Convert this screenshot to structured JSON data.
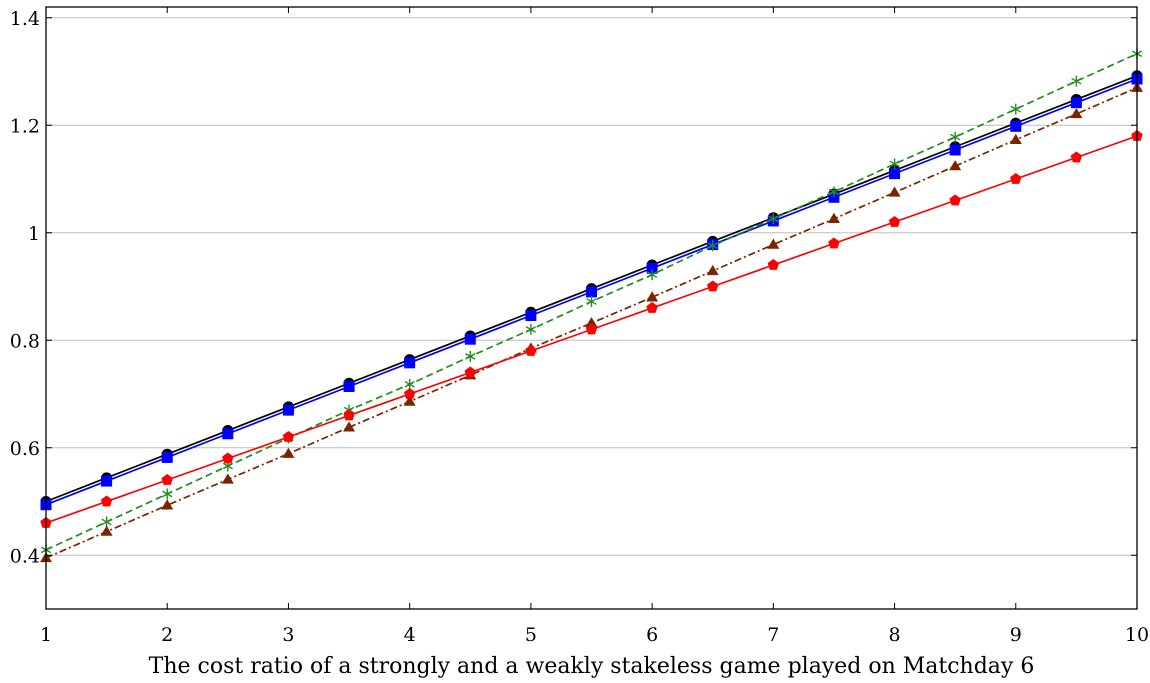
{
  "chart_data": {
    "type": "line",
    "title": "",
    "xlabel": "The cost ratio of a strongly and a weakly stakeless game played on Matchday 6",
    "ylabel": "",
    "xlim": [
      1,
      10
    ],
    "ylim": [
      0.3,
      1.42
    ],
    "grid": "horizontal",
    "legend": "none",
    "x_ticks": [
      "1",
      "2",
      "3",
      "4",
      "5",
      "6",
      "7",
      "8",
      "9",
      "10"
    ],
    "y_ticks": [
      "0.4",
      "0.6",
      "0.8",
      "1",
      "1.2",
      "1.4"
    ],
    "x_tick_values": [
      1,
      2,
      3,
      4,
      5,
      6,
      7,
      8,
      9,
      10
    ],
    "y_tick_values": [
      0.4,
      0.6,
      0.8,
      1.0,
      1.2,
      1.4
    ],
    "x": [
      1,
      1.5,
      2,
      2.5,
      3,
      3.5,
      4,
      4.5,
      5,
      5.5,
      6,
      6.5,
      7,
      7.5,
      8,
      8.5,
      9,
      9.5,
      10
    ],
    "series": [
      {
        "color": "#000000",
        "marker": "circle",
        "dash": "solid",
        "values": [
          0.5,
          0.544,
          0.588,
          0.632,
          0.676,
          0.72,
          0.764,
          0.808,
          0.852,
          0.896,
          0.94,
          0.984,
          1.028,
          1.072,
          1.116,
          1.16,
          1.204,
          1.248,
          1.292
        ]
      },
      {
        "color": "#0000ff",
        "marker": "square",
        "dash": "solid",
        "values": [
          0.494,
          0.538,
          0.582,
          0.626,
          0.67,
          0.714,
          0.758,
          0.802,
          0.846,
          0.89,
          0.934,
          0.978,
          1.022,
          1.066,
          1.11,
          1.154,
          1.198,
          1.242,
          1.286
        ]
      },
      {
        "color": "#228b22",
        "marker": "asterisk",
        "dash": "dashed",
        "values": [
          0.41,
          0.462,
          0.514,
          0.566,
          0.618,
          0.67,
          0.718,
          0.77,
          0.82,
          0.872,
          0.922,
          0.976,
          1.026,
          1.076,
          1.128,
          1.178,
          1.23,
          1.282,
          1.333
        ]
      },
      {
        "color": "#7a2400",
        "marker": "triangle",
        "dash": "dashdot",
        "values": [
          0.395,
          0.444,
          0.493,
          0.541,
          0.589,
          0.638,
          0.686,
          0.735,
          0.785,
          0.832,
          0.88,
          0.929,
          0.978,
          1.026,
          1.075,
          1.124,
          1.173,
          1.221,
          1.27
        ]
      },
      {
        "color": "#ff0000",
        "marker": "pentagon",
        "dash": "solid",
        "values": [
          0.46,
          0.5,
          0.54,
          0.58,
          0.62,
          0.66,
          0.7,
          0.74,
          0.78,
          0.82,
          0.86,
          0.9,
          0.94,
          0.98,
          1.02,
          1.06,
          1.1,
          1.14,
          1.18
        ]
      }
    ]
  }
}
